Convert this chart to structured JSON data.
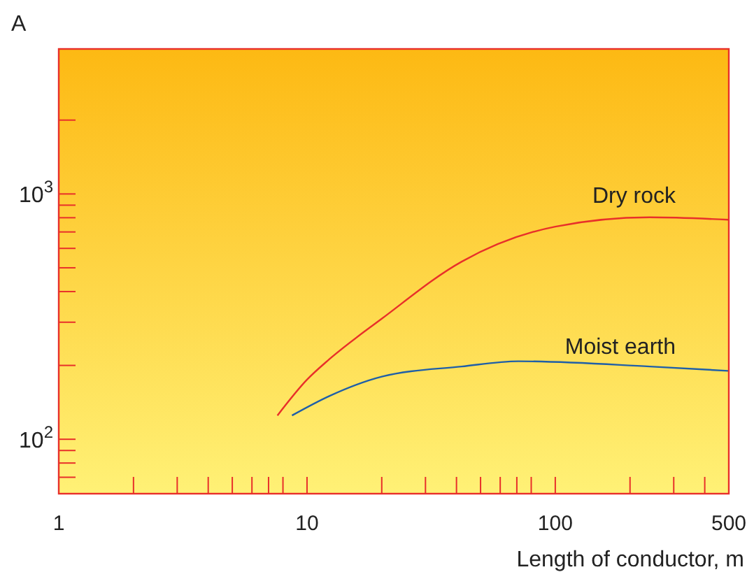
{
  "chart_data": {
    "type": "line",
    "xlabel": "Length of conductor, m",
    "ylabel": "A",
    "log": "xy",
    "grid": false,
    "marker": "none",
    "line_style": "solid",
    "xlim": [
      1,
      500
    ],
    "ylim": [
      60,
      3900
    ],
    "xticks": [
      1,
      {
        "value": 2,
        "label": null
      },
      {
        "value": 3,
        "label": null
      },
      {
        "value": 4,
        "label": null
      },
      {
        "value": 5,
        "label": null
      },
      {
        "value": 6,
        "label": null
      },
      {
        "value": 7,
        "label": null
      },
      {
        "value": 8,
        "label": null
      },
      10,
      {
        "value": 20,
        "label": null
      },
      {
        "value": 30,
        "label": null
      },
      {
        "value": 40,
        "label": null
      },
      {
        "value": 50,
        "label": null
      },
      {
        "value": 60,
        "label": null
      },
      {
        "value": 70,
        "label": null
      },
      {
        "value": 80,
        "label": null
      },
      100,
      {
        "value": 200,
        "label": null
      },
      {
        "value": 300,
        "label": null
      },
      {
        "value": 400,
        "label": null
      },
      500
    ],
    "yticks": [
      {
        "value": 70,
        "label": null
      },
      {
        "value": 80,
        "label": null
      },
      {
        "value": 90,
        "label": null
      },
      {
        "value": 100,
        "label": "10$^{2}$"
      },
      {
        "value": 200,
        "label": null
      },
      {
        "value": 300,
        "label": null
      },
      {
        "value": 400,
        "label": null
      },
      {
        "value": 500,
        "label": null
      },
      {
        "value": 600,
        "label": null
      },
      {
        "value": 700,
        "label": null
      },
      {
        "value": 800,
        "label": null
      },
      {
        "value": 900,
        "label": null
      },
      {
        "value": 1000,
        "label": "10$^{3}$"
      },
      {
        "value": 2000,
        "label": null
      }
    ],
    "series": [
      {
        "name": "Dry rock",
        "color": "#e8302a",
        "x": [
          7.6,
          10,
          12.3,
          20,
          42,
          100,
          240,
          500
        ],
        "values": [
          125,
          175,
          212,
          310,
          530,
          736,
          803,
          785
        ]
      },
      {
        "name": "Moist earth",
        "color": "#1f5fa8",
        "x": [
          8.7,
          12.3,
          20,
          42,
          71,
          240,
          500
        ],
        "values": [
          125,
          150,
          180,
          198,
          208,
          198,
          190
        ]
      }
    ]
  }
}
